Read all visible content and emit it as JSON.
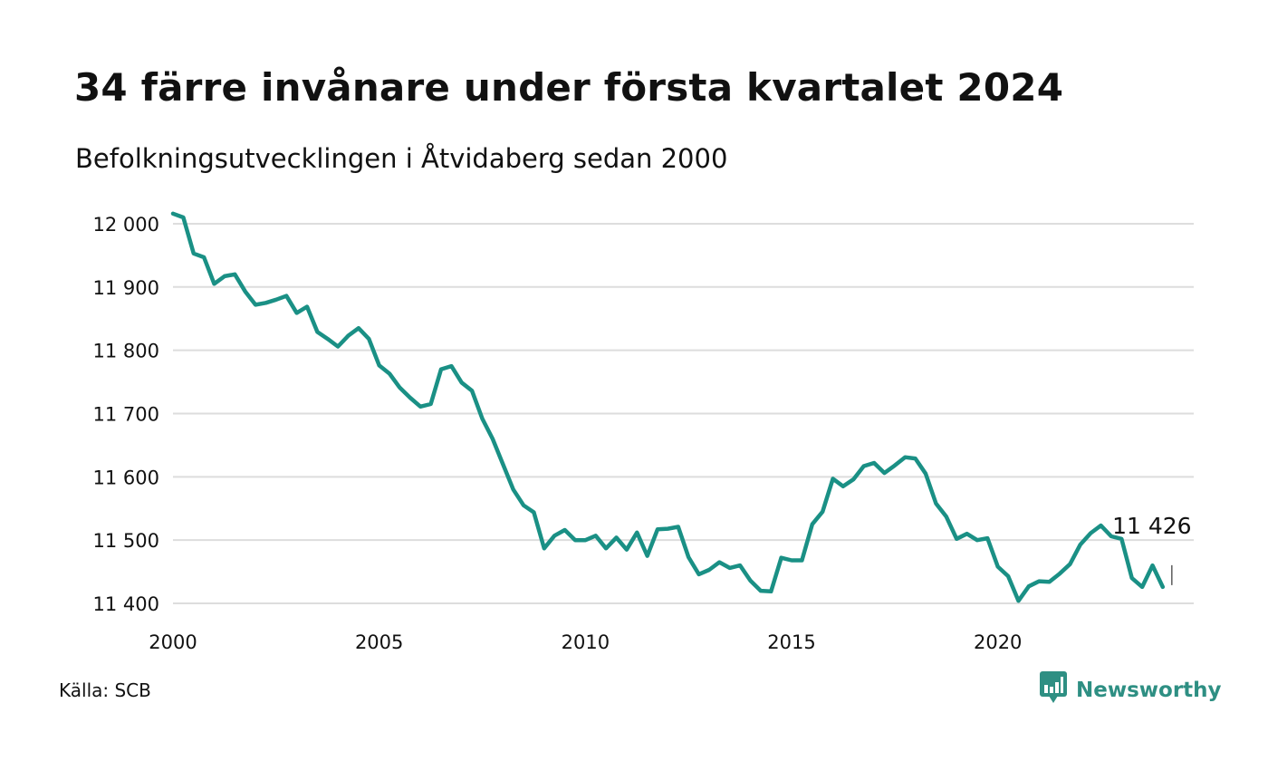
{
  "header": {
    "title": "34 färre invånare under första kvartalet 2024",
    "subtitle": "Befolkningsutvecklingen i Åtvidaberg sedan 2000"
  },
  "footer": {
    "source": "Källa: SCB",
    "brand": "Newsworthy",
    "brand_icon": "bar-chart-speech-bubble-icon"
  },
  "colors": {
    "line": "#1a9085",
    "grid": "#dddddd",
    "brand": "#2e8f83",
    "text": "#111111"
  },
  "chart_data": {
    "type": "line",
    "x_ticks": [
      2000,
      2005,
      2010,
      2015,
      2020
    ],
    "x_tick_labels": [
      "2000",
      "2005",
      "2010",
      "2015",
      "2020"
    ],
    "xlim": [
      2000.0,
      2024.75
    ],
    "y_ticks": [
      11400,
      11500,
      11600,
      11700,
      11800,
      11900,
      12000
    ],
    "y_tick_labels": [
      "11 400",
      "11 500",
      "11 600",
      "11 700",
      "11 800",
      "11 900",
      "12 000"
    ],
    "ylim": [
      11380,
      12030
    ],
    "grid": "horizontal",
    "annotation": {
      "text": "11 426",
      "x": 2024.0,
      "y": 11426
    },
    "x_start": 2000.0,
    "x_step": 0.25,
    "values": [
      12016,
      12010,
      11953,
      11947,
      11905,
      11917,
      11920,
      11893,
      11872,
      11875,
      11880,
      11886,
      11859,
      11869,
      11829,
      11818,
      11806,
      11823,
      11835,
      11818,
      11776,
      11763,
      11741,
      11725,
      11711,
      11715,
      11770,
      11775,
      11749,
      11736,
      11692,
      11660,
      11620,
      11580,
      11555,
      11544,
      11487,
      11507,
      11516,
      11500,
      11500,
      11507,
      11487,
      11504,
      11485,
      11512,
      11475,
      11517,
      11518,
      11521,
      11473,
      11446,
      11453,
      11465,
      11456,
      11460,
      11436,
      11420,
      11419,
      11472,
      11468,
      11468,
      11525,
      11545,
      11597,
      11585,
      11596,
      11617,
      11622,
      11606,
      11618,
      11631,
      11629,
      11605,
      11558,
      11537,
      11502,
      11510,
      11500,
      11503,
      11458,
      11443,
      11404,
      11427,
      11435,
      11434,
      11447,
      11462,
      11493,
      11511,
      11523,
      11506,
      11502,
      11440,
      11426,
      11460,
      11426
    ]
  }
}
